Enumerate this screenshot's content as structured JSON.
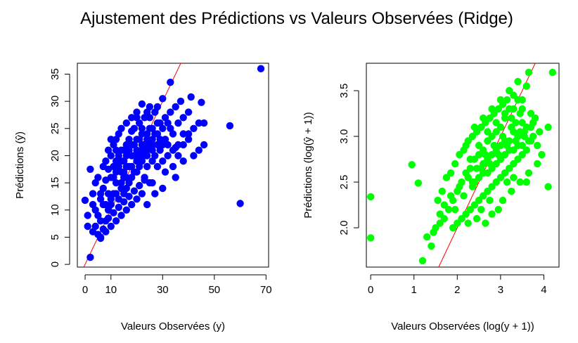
{
  "title": "Ajustement des Prédictions vs Valeurs Observées (Ridge)",
  "colors": {
    "left_points": "#0000ff",
    "right_points": "#00ff00",
    "reference_line": "#ff0000",
    "axes": "#000000"
  },
  "chart_data": [
    {
      "type": "scatter",
      "xlabel": "Valeurs Observées (y)",
      "ylabel": "Prédictions (ŷ)",
      "xlim": [
        -3,
        71
      ],
      "ylim": [
        -0.5,
        37
      ],
      "xticks": [
        0,
        10,
        30,
        50,
        70
      ],
      "xtick_labels": [
        "0",
        "10",
        "30",
        "50",
        "70"
      ],
      "yticks": [
        0,
        5,
        10,
        15,
        20,
        25,
        30,
        35
      ],
      "ytick_labels": [
        "0",
        "5",
        "10",
        "15",
        "20",
        "25",
        "30",
        "35"
      ],
      "point_color": "#0000ff",
      "reference_line": {
        "slope": 1,
        "intercept": 0,
        "color": "#ff0000"
      },
      "grid": false,
      "points": [
        [
          68,
          36
        ],
        [
          60,
          11.2
        ],
        [
          56,
          25.5
        ],
        [
          2,
          1.3
        ],
        [
          1,
          7
        ],
        [
          0,
          11.8
        ],
        [
          45,
          29.8
        ],
        [
          41,
          30.8
        ],
        [
          44,
          21
        ],
        [
          46,
          26
        ],
        [
          33,
          33.5
        ],
        [
          38,
          24
        ],
        [
          35,
          21.5
        ],
        [
          30,
          30.5
        ],
        [
          25,
          29
        ],
        [
          24,
          28
        ],
        [
          22,
          29.5
        ],
        [
          20,
          27
        ],
        [
          18,
          24.5
        ],
        [
          16,
          22
        ],
        [
          15,
          19
        ],
        [
          14,
          17
        ],
        [
          12,
          15
        ],
        [
          11,
          13
        ],
        [
          10,
          11
        ],
        [
          9,
          10
        ],
        [
          8,
          8
        ],
        [
          7,
          6.5
        ],
        [
          6,
          5
        ],
        [
          5,
          5.5
        ],
        [
          4,
          7
        ],
        [
          3,
          6
        ],
        [
          5,
          9
        ],
        [
          6,
          12
        ],
        [
          7,
          14
        ],
        [
          8,
          15.5
        ],
        [
          9,
          17.5
        ],
        [
          10,
          20
        ],
        [
          11,
          22
        ],
        [
          12,
          23
        ],
        [
          13,
          24
        ],
        [
          14,
          21
        ],
        [
          15,
          16
        ],
        [
          16,
          14
        ],
        [
          17,
          18
        ],
        [
          18,
          20
        ],
        [
          19,
          22
        ],
        [
          20,
          19
        ],
        [
          21,
          23
        ],
        [
          22,
          25
        ],
        [
          23,
          20
        ],
        [
          24,
          23
        ],
        [
          25,
          25
        ],
        [
          26,
          21
        ],
        [
          27,
          24
        ],
        [
          28,
          22
        ],
        [
          29,
          26
        ],
        [
          30,
          19
        ],
        [
          31,
          23
        ],
        [
          32,
          20
        ],
        [
          33,
          25
        ],
        [
          34,
          18
        ],
        [
          36,
          22
        ],
        [
          38,
          19
        ],
        [
          40,
          23
        ],
        [
          42,
          20
        ],
        [
          30,
          14
        ],
        [
          25,
          15
        ],
        [
          22,
          13
        ],
        [
          20,
          12
        ],
        [
          18,
          11
        ],
        [
          16,
          10
        ],
        [
          14,
          9
        ],
        [
          12,
          8
        ],
        [
          10,
          7
        ],
        [
          8,
          6
        ],
        [
          6,
          4.8
        ],
        [
          9,
          13
        ],
        [
          11,
          16
        ],
        [
          13,
          18
        ],
        [
          15,
          21
        ],
        [
          17,
          23
        ],
        [
          19,
          25
        ],
        [
          21,
          26
        ],
        [
          23,
          27
        ],
        [
          25,
          27
        ],
        [
          27,
          28
        ],
        [
          28,
          29
        ],
        [
          3,
          11
        ],
        [
          2,
          17.5
        ],
        [
          1,
          9
        ],
        [
          13,
          12
        ],
        [
          15,
          13
        ],
        [
          17,
          15
        ],
        [
          19,
          17
        ],
        [
          21,
          18
        ],
        [
          23,
          16
        ],
        [
          24,
          18
        ],
        [
          26,
          19
        ],
        [
          28,
          18
        ],
        [
          29,
          21
        ],
        [
          31,
          17
        ],
        [
          35,
          16
        ],
        [
          27,
          13
        ],
        [
          24,
          11
        ],
        [
          26,
          15
        ],
        [
          3,
          13
        ],
        [
          4,
          15
        ],
        [
          5,
          16
        ],
        [
          7,
          18
        ],
        [
          4,
          10
        ],
        [
          6,
          8
        ],
        [
          12,
          19
        ],
        [
          14,
          25
        ],
        [
          16,
          26
        ],
        [
          18,
          27
        ],
        [
          20,
          28
        ],
        [
          22,
          24
        ],
        [
          10,
          16
        ],
        [
          12,
          17
        ],
        [
          14,
          14
        ],
        [
          16,
          18
        ],
        [
          18,
          16
        ],
        [
          20,
          21
        ],
        [
          22,
          21
        ],
        [
          24,
          20
        ],
        [
          26,
          23
        ],
        [
          28,
          24
        ],
        [
          30,
          25
        ],
        [
          32,
          22
        ],
        [
          34,
          24
        ],
        [
          36,
          26
        ],
        [
          38,
          27
        ],
        [
          40,
          28
        ],
        [
          42,
          25
        ],
        [
          33,
          28
        ],
        [
          35,
          29
        ],
        [
          37,
          30
        ],
        [
          8,
          11
        ],
        [
          10,
          12
        ],
        [
          12,
          13
        ],
        [
          14,
          15
        ],
        [
          16,
          16
        ],
        [
          18,
          18
        ],
        [
          20,
          17
        ],
        [
          22,
          19
        ],
        [
          24,
          21
        ],
        [
          26,
          22
        ],
        [
          9,
          8.5
        ],
        [
          11,
          9.5
        ],
        [
          13,
          10.5
        ],
        [
          15,
          11.5
        ],
        [
          17,
          12.5
        ],
        [
          19,
          13.5
        ],
        [
          21,
          14.5
        ],
        [
          23,
          15.5
        ],
        [
          6,
          13
        ],
        [
          7,
          11
        ],
        [
          8,
          19
        ],
        [
          9,
          21
        ],
        [
          10,
          23
        ],
        [
          11,
          18
        ],
        [
          12,
          21
        ],
        [
          13,
          20
        ],
        [
          14,
          19
        ],
        [
          15,
          17
        ],
        [
          16,
          20
        ],
        [
          17,
          21
        ],
        [
          18,
          22
        ],
        [
          19,
          20
        ],
        [
          20,
          23
        ],
        [
          21,
          20
        ],
        [
          22,
          22
        ],
        [
          23,
          22
        ],
        [
          24,
          24
        ],
        [
          25,
          22
        ],
        [
          26,
          25
        ],
        [
          27,
          20
        ],
        [
          28,
          26
        ],
        [
          29,
          23
        ],
        [
          30,
          22
        ],
        [
          31,
          27
        ],
        [
          32,
          26
        ],
        [
          34,
          21
        ],
        [
          36,
          20
        ],
        [
          38,
          22
        ],
        [
          40,
          24
        ],
        [
          44,
          26
        ],
        [
          46,
          22
        ]
      ]
    },
    {
      "type": "scatter",
      "xlabel": "Valeurs Observées (log(y + 1))",
      "ylabel": "Prédictions (log(ŷ + 1))",
      "xlim": [
        -0.1,
        4.35
      ],
      "ylim": [
        1.57,
        3.8
      ],
      "xticks": [
        0,
        1,
        2,
        3,
        4
      ],
      "xtick_labels": [
        "0",
        "1",
        "2",
        "3",
        "4"
      ],
      "yticks": [
        2.0,
        2.5,
        3.0,
        3.5
      ],
      "ytick_labels": [
        "2.0",
        "2.5",
        "3.0",
        "3.5"
      ],
      "point_color": "#00ff00",
      "reference_line": {
        "slope": 1,
        "intercept": 0,
        "color": "#ff0000"
      },
      "grid": false,
      "points": [
        [
          0,
          2.34
        ],
        [
          0,
          1.89
        ],
        [
          0.95,
          2.69
        ],
        [
          1.1,
          2.49
        ],
        [
          1.2,
          1.64
        ],
        [
          1.3,
          1.9
        ],
        [
          1.4,
          1.8
        ],
        [
          4.2,
          3.7
        ],
        [
          4.1,
          3.1
        ],
        [
          4.1,
          2.45
        ],
        [
          3.65,
          3.7
        ],
        [
          3.6,
          3.55
        ],
        [
          3.5,
          3.3
        ],
        [
          3.4,
          3.4
        ],
        [
          3.3,
          3.45
        ],
        [
          3.2,
          3.3
        ],
        [
          3.1,
          3.2
        ],
        [
          3.0,
          3.1
        ],
        [
          2.9,
          3.05
        ],
        [
          2.8,
          3.0
        ],
        [
          2.7,
          2.95
        ],
        [
          2.6,
          2.85
        ],
        [
          2.5,
          2.8
        ],
        [
          2.4,
          2.75
        ],
        [
          2.3,
          2.65
        ],
        [
          2.2,
          2.6
        ],
        [
          2.1,
          2.5
        ],
        [
          2.0,
          2.4
        ],
        [
          1.9,
          2.3
        ],
        [
          1.8,
          2.2
        ],
        [
          1.7,
          2.1
        ],
        [
          1.6,
          2.05
        ],
        [
          1.5,
          2.0
        ],
        [
          1.45,
          1.95
        ],
        [
          1.55,
          2.3
        ],
        [
          1.65,
          2.4
        ],
        [
          1.75,
          2.55
        ],
        [
          1.85,
          2.6
        ],
        [
          1.95,
          2.7
        ],
        [
          2.05,
          2.8
        ],
        [
          2.15,
          2.85
        ],
        [
          2.25,
          2.95
        ],
        [
          2.35,
          3.0
        ],
        [
          2.45,
          3.05
        ],
        [
          2.55,
          3.1
        ],
        [
          2.65,
          3.15
        ],
        [
          2.75,
          3.2
        ],
        [
          2.85,
          3.25
        ],
        [
          2.95,
          3.3
        ],
        [
          3.05,
          3.35
        ],
        [
          3.15,
          3.4
        ],
        [
          3.25,
          3.2
        ],
        [
          3.35,
          3.15
        ],
        [
          3.45,
          3.05
        ],
        [
          3.55,
          3.0
        ],
        [
          3.65,
          2.95
        ],
        [
          3.75,
          3.0
        ],
        [
          3.85,
          2.9
        ],
        [
          3.7,
          3.1
        ],
        [
          3.8,
          3.2
        ],
        [
          3.9,
          3.05
        ],
        [
          3.6,
          2.85
        ],
        [
          3.5,
          2.8
        ],
        [
          3.4,
          2.75
        ],
        [
          3.3,
          2.7
        ],
        [
          3.2,
          2.65
        ],
        [
          3.1,
          2.6
        ],
        [
          3.0,
          2.55
        ],
        [
          2.9,
          2.5
        ],
        [
          2.8,
          2.45
        ],
        [
          2.7,
          2.4
        ],
        [
          2.6,
          2.35
        ],
        [
          2.5,
          2.3
        ],
        [
          2.4,
          2.25
        ],
        [
          2.3,
          2.2
        ],
        [
          2.2,
          2.15
        ],
        [
          2.1,
          2.1
        ],
        [
          2.0,
          2.05
        ],
        [
          1.9,
          2.0
        ],
        [
          2.2,
          2.9
        ],
        [
          2.4,
          3.1
        ],
        [
          2.6,
          3.2
        ],
        [
          2.8,
          3.3
        ],
        [
          3.0,
          3.4
        ],
        [
          3.2,
          3.5
        ],
        [
          3.4,
          3.6
        ],
        [
          2.3,
          2.75
        ],
        [
          2.5,
          2.9
        ],
        [
          2.7,
          3.05
        ],
        [
          2.9,
          3.15
        ],
        [
          3.1,
          3.25
        ],
        [
          3.3,
          3.3
        ],
        [
          3.5,
          3.4
        ],
        [
          2.6,
          2.7
        ],
        [
          2.8,
          2.8
        ],
        [
          3.0,
          2.9
        ],
        [
          3.2,
          2.95
        ],
        [
          3.4,
          3.0
        ],
        [
          3.6,
          3.1
        ],
        [
          2.7,
          2.6
        ],
        [
          2.9,
          2.7
        ],
        [
          3.1,
          2.8
        ],
        [
          3.3,
          2.85
        ],
        [
          3.5,
          2.9
        ],
        [
          3.7,
          2.95
        ],
        [
          2.5,
          2.55
        ],
        [
          2.7,
          2.75
        ],
        [
          2.9,
          2.85
        ],
        [
          3.1,
          2.95
        ],
        [
          3.3,
          3.05
        ],
        [
          3.5,
          3.15
        ],
        [
          3.7,
          3.25
        ],
        [
          2.4,
          2.5
        ],
        [
          2.6,
          2.6
        ],
        [
          2.8,
          2.65
        ],
        [
          3.0,
          2.75
        ],
        [
          3.2,
          2.85
        ],
        [
          3.4,
          2.9
        ],
        [
          2.35,
          2.45
        ],
        [
          2.55,
          2.65
        ],
        [
          2.75,
          2.7
        ],
        [
          2.95,
          2.8
        ],
        [
          3.15,
          2.9
        ],
        [
          3.35,
          2.95
        ],
        [
          3.55,
          3.05
        ],
        [
          3.75,
          3.15
        ],
        [
          3.45,
          3.25
        ],
        [
          3.25,
          3.1
        ],
        [
          3.05,
          3.0
        ],
        [
          2.85,
          2.9
        ],
        [
          2.65,
          2.8
        ],
        [
          2.45,
          2.65
        ],
        [
          2.25,
          2.55
        ],
        [
          2.05,
          2.45
        ],
        [
          1.85,
          2.35
        ],
        [
          1.7,
          2.25
        ],
        [
          1.6,
          2.15
        ],
        [
          2.95,
          2.2
        ],
        [
          3.05,
          2.3
        ],
        [
          2.75,
          2.3
        ],
        [
          2.55,
          2.2
        ],
        [
          3.25,
          2.4
        ],
        [
          3.45,
          2.5
        ],
        [
          3.65,
          2.6
        ],
        [
          3.85,
          2.7
        ],
        [
          3.95,
          2.8
        ],
        [
          2.15,
          2.35
        ],
        [
          1.95,
          2.2
        ],
        [
          2.35,
          2.5
        ],
        [
          3.6,
          2.5
        ],
        [
          3.3,
          2.55
        ],
        [
          3.15,
          2.5
        ],
        [
          2.8,
          2.15
        ],
        [
          2.65,
          2.05
        ],
        [
          2.45,
          2.1
        ],
        [
          2.25,
          2.05
        ]
      ]
    }
  ]
}
